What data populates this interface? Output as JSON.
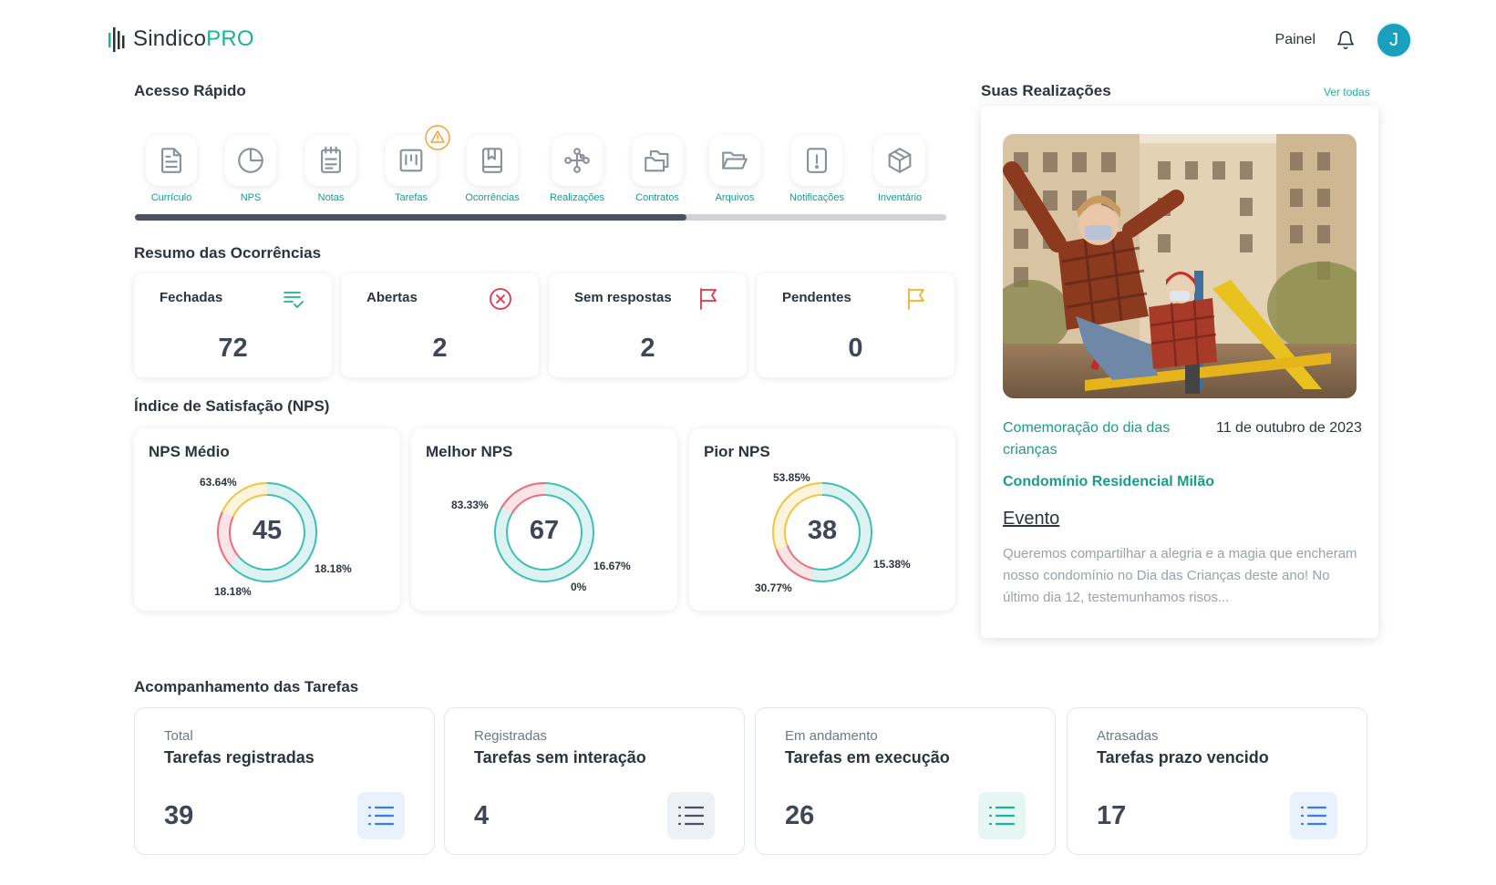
{
  "header": {
    "logo_main": "Sindico",
    "logo_accent": "PRO",
    "nav_link": "Painel",
    "avatar_initial": "J"
  },
  "quick_access": {
    "title": "Acesso Rápido",
    "scroll_fraction": 0.68,
    "items": [
      {
        "label": "Currículo",
        "icon": "document-icon"
      },
      {
        "label": "NPS",
        "icon": "pie-chart-icon"
      },
      {
        "label": "Notas",
        "icon": "notepad-icon"
      },
      {
        "label": "Tarefas",
        "icon": "kanban-icon",
        "warning": true
      },
      {
        "label": "Ocorrências",
        "icon": "book-icon"
      },
      {
        "label": "Realizações",
        "icon": "network-icon"
      },
      {
        "label": "Contratos",
        "icon": "folders-icon"
      },
      {
        "label": "Arquivos",
        "icon": "folder-open-icon"
      },
      {
        "label": "Notificações",
        "icon": "alert-file-icon"
      },
      {
        "label": "Inventário",
        "icon": "box-icon"
      }
    ]
  },
  "occurrences": {
    "title": "Resumo das Ocorrências",
    "cards": [
      {
        "label": "Fechadas",
        "value": "72",
        "icon": "checklist-icon",
        "color": "#1bb39a"
      },
      {
        "label": "Abertas",
        "value": "2",
        "icon": "x-circle-icon",
        "color": "#e0344a"
      },
      {
        "label": "Sem respostas",
        "value": "2",
        "icon": "flag-icon",
        "color": "#e0344a"
      },
      {
        "label": "Pendentes",
        "value": "0",
        "icon": "flag-icon",
        "color": "#f2b32c"
      }
    ]
  },
  "nps": {
    "title": "Índice de Satisfação (NPS)",
    "colors": {
      "promoters": "#3fbfb5",
      "detractors": "#f26b7a",
      "neutral": "#f2c440"
    },
    "cards": [
      {
        "title": "NPS Médio",
        "value": "45",
        "promoters": 63.64,
        "detractors": 18.18,
        "neutral": 18.18,
        "promoters_label": "63.64%",
        "detractors_label": "18.18%",
        "neutral_label": "18.18%"
      },
      {
        "title": "Melhor NPS",
        "value": "67",
        "promoters": 83.33,
        "detractors": 16.67,
        "neutral": 0,
        "promoters_label": "83.33%",
        "detractors_label": "16.67%",
        "neutral_label": "0%"
      },
      {
        "title": "Pior NPS",
        "value": "38",
        "promoters": 53.85,
        "detractors": 15.38,
        "neutral": 30.77,
        "promoters_label": "53.85%",
        "detractors_label": "15.38%",
        "neutral_label": "30.77%"
      }
    ]
  },
  "achievements": {
    "title": "Suas Realizações",
    "see_all": "Ver todas",
    "event_title": "Comemoração do dia das crianças",
    "date": "11 de outubro de 2023",
    "condo": "Condomínio Residencial Milão",
    "type": "Evento",
    "description": "Queremos compartilhar a alegria e a magia que encheram nosso condomínio no Dia das Crianças deste ano! No último dia 12, testemunhamos risos..."
  },
  "tasks": {
    "title": "Acompanhamento das Tarefas",
    "cards": [
      {
        "category": "Total",
        "title": "Tarefas registradas",
        "value": "39",
        "color": "#3b7be8",
        "bg": "#e9f1fd"
      },
      {
        "category": "Registradas",
        "title": "Tarefas sem interação",
        "value": "4",
        "color": "#4a5262",
        "bg": "#edf0f4"
      },
      {
        "category": "Em andamento",
        "title": "Tarefas em execução",
        "value": "26",
        "color": "#1bb39a",
        "bg": "#e6f7f3"
      },
      {
        "category": "Atrasadas",
        "title": "Tarefas prazo vencido",
        "value": "17",
        "color": "#3b7be8",
        "bg": "#e9f1fd"
      }
    ]
  }
}
